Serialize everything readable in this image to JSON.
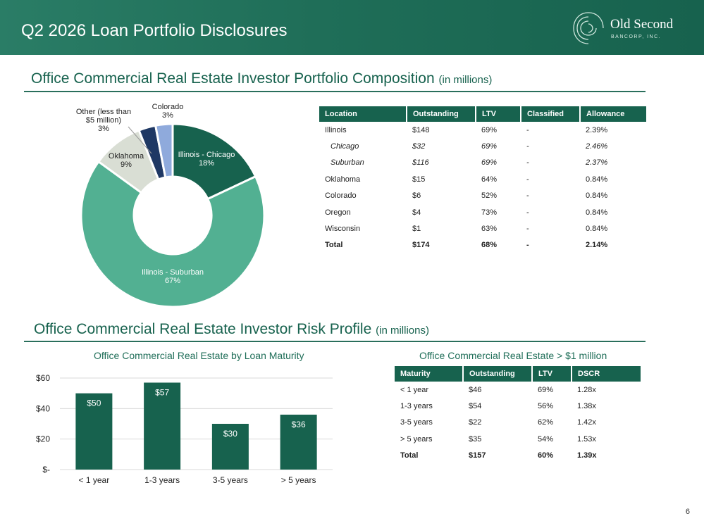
{
  "header": {
    "title": "Q2 2026 Loan Portfolio Disclosures",
    "logo_name": "Old Second",
    "logo_sub": "BANCORP, INC."
  },
  "section1": {
    "title": "Office Commercial Real Estate Investor Portfolio Composition",
    "unit": "(in millions)"
  },
  "section2": {
    "title": "Office Commercial Real Estate Investor Risk Profile",
    "unit": "(in millions)"
  },
  "composition_table": {
    "headers": [
      "Location",
      "Outstanding",
      "LTV",
      "Classified",
      "Allowance"
    ],
    "rows": [
      [
        "Illinois",
        "$148",
        "69%",
        "-",
        "2.39%"
      ],
      [
        "Chicago",
        "$32",
        "69%",
        "-",
        "2.46%"
      ],
      [
        "Suburban",
        "$116",
        "69%",
        "-",
        "2.37%"
      ],
      [
        "Oklahoma",
        "$15",
        "64%",
        "-",
        "0.84%"
      ],
      [
        "Colorado",
        "$6",
        "52%",
        "-",
        "0.84%"
      ],
      [
        "Oregon",
        "$4",
        "73%",
        "-",
        "0.84%"
      ],
      [
        "Wisconsin",
        "$1",
        "63%",
        "-",
        "0.84%"
      ],
      [
        "Total",
        "$174",
        "68%",
        "-",
        "2.14%"
      ]
    ]
  },
  "maturity_table": {
    "title": "Office Commercial Real Estate > $1 million",
    "headers": [
      "Maturity",
      "Outstanding",
      "LTV",
      "DSCR"
    ],
    "rows": [
      [
        "< 1 year",
        "$46",
        "69%",
        "1.28x"
      ],
      [
        "1-3 years",
        "$54",
        "56%",
        "1.38x"
      ],
      [
        "3-5 years",
        "$22",
        "62%",
        "1.42x"
      ],
      [
        "> 5 years",
        "$35",
        "54%",
        "1.53x"
      ],
      [
        "Total",
        "$157",
        "60%",
        "1.39x"
      ]
    ]
  },
  "page_number": "6",
  "chart_data": [
    {
      "type": "pie",
      "title": "",
      "labels": [
        "Illinois - Chicago",
        "Illinois - Suburban",
        "Oklahoma",
        "Other (less than $5 million)",
        "Colorado"
      ],
      "values": [
        18,
        67,
        9,
        3,
        3
      ],
      "value_labels": [
        "18%",
        "67%",
        "9%",
        "3%",
        "3%"
      ],
      "colors": [
        "#17624e",
        "#52b092",
        "#d9ded4",
        "#1f3864",
        "#8faadc"
      ],
      "donut": true
    },
    {
      "type": "bar",
      "title": "Office Commercial Real Estate by Loan Maturity",
      "categories": [
        "< 1 year",
        "1-3 years",
        "3-5 years",
        "> 5 years"
      ],
      "values": [
        50,
        57,
        30,
        36
      ],
      "value_labels": [
        "$50",
        "$57",
        "$30",
        "$36"
      ],
      "yticks": [
        "$-",
        "$20",
        "$40",
        "$60"
      ],
      "ylim": [
        0,
        60
      ],
      "grid": true,
      "color": "#17624e",
      "xlabel": "",
      "ylabel": ""
    }
  ]
}
